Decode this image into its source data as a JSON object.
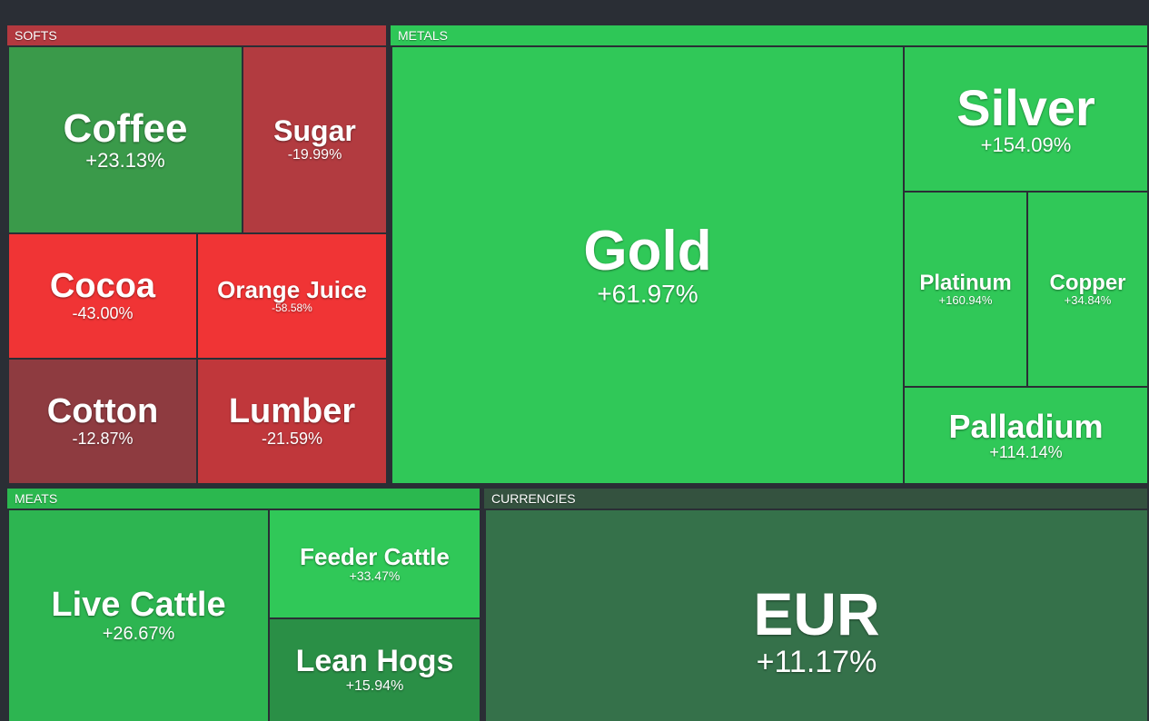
{
  "groups": [
    {
      "label": "SOFTS",
      "color": "#b3393f",
      "tiles": [
        {
          "name": "Coffee",
          "change": "+23.13%",
          "color": "#3a9a4a"
        },
        {
          "name": "Sugar",
          "change": "-19.99%",
          "color": "#b23b40"
        },
        {
          "name": "Cocoa",
          "change": "-43.00%",
          "color": "#f03435"
        },
        {
          "name": "Orange Juice",
          "change": "-58.58%",
          "color": "#f03435"
        },
        {
          "name": "Cotton",
          "change": "-12.87%",
          "color": "#8e3b40"
        },
        {
          "name": "Lumber",
          "change": "-21.59%",
          "color": "#c0373b"
        }
      ]
    },
    {
      "label": "METALS",
      "color": "#2ec757",
      "tiles": [
        {
          "name": "Gold",
          "change": "+61.97%",
          "color": "#30c858"
        },
        {
          "name": "Silver",
          "change": "+154.09%",
          "color": "#30c858"
        },
        {
          "name": "Platinum",
          "change": "+160.94%",
          "color": "#30c858"
        },
        {
          "name": "Copper",
          "change": "+34.84%",
          "color": "#30c858"
        },
        {
          "name": "Palladium",
          "change": "+114.14%",
          "color": "#30c858"
        }
      ]
    },
    {
      "label": "MEATS",
      "color": "#2bb84f",
      "tiles": [
        {
          "name": "Live Cattle",
          "change": "+26.67%",
          "color": "#2db551"
        },
        {
          "name": "Feeder Cattle",
          "change": "+33.47%",
          "color": "#30c858"
        },
        {
          "name": "Lean Hogs",
          "change": "+15.94%",
          "color": "#2a8f46"
        }
      ]
    },
    {
      "label": "CURRENCIES",
      "color": "#34523f",
      "tiles": [
        {
          "name": "EUR",
          "change": "+11.17%",
          "color": "#35714a"
        }
      ]
    }
  ]
}
